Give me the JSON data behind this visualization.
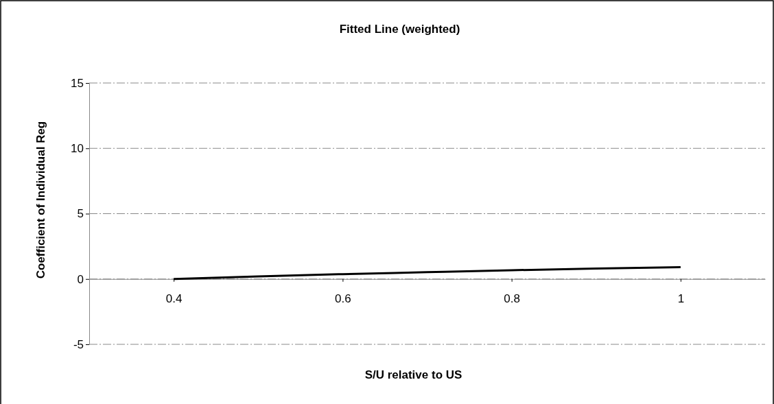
{
  "chart_data": {
    "type": "line",
    "title": "Fitted Line (weighted)",
    "xlabel": "S/U relative to US",
    "ylabel": "Coefficient of Individual Reg",
    "x": [
      0.4,
      0.5,
      0.6,
      0.7,
      0.8,
      0.9,
      1
    ],
    "series": [
      {
        "color": "#000000",
        "values": [
          0,
          0.2,
          0.37,
          0.52,
          0.67,
          0.8,
          0.9
        ]
      }
    ],
    "xlim": [
      0.3,
      1.1
    ],
    "xticks": [
      0.4,
      0.6,
      0.8,
      1
    ],
    "ylim": [
      -5,
      15
    ],
    "yticks": [
      -5,
      0,
      5,
      10,
      15
    ],
    "grid": "y",
    "marker": "none",
    "line_style": "solid"
  }
}
